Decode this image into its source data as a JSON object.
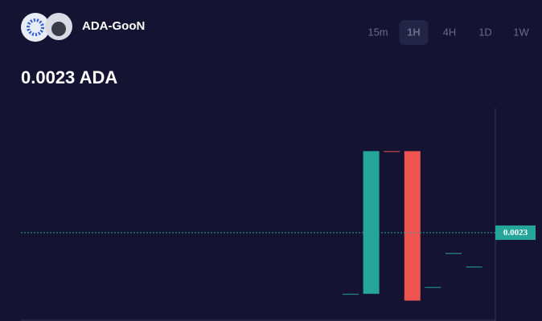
{
  "header": {
    "pair": "ADA-GooN",
    "price": "0.0023 ADA",
    "timeframes": [
      "15m",
      "1H",
      "4H",
      "1D",
      "1W"
    ],
    "selected_index": 1
  },
  "chart_data": {
    "type": "candlestick",
    "categories": [
      null,
      null,
      null,
      null,
      null,
      null,
      null
    ],
    "open": [
      0.0014,
      0.0014,
      0.0035,
      0.0035,
      0.0015,
      0.002,
      0.0018
    ],
    "close": [
      0.0014,
      0.0035,
      0.0035,
      0.0013,
      0.0015,
      0.002,
      0.0018
    ],
    "colors": [
      "#26a69a",
      "#26a69a",
      "#ef5350",
      "#ef5350",
      "#26a69a",
      "#26a69a",
      "#26a69a"
    ],
    "ylim": [
      0.001,
      0.004
    ],
    "last_price": 0.0023
  }
}
